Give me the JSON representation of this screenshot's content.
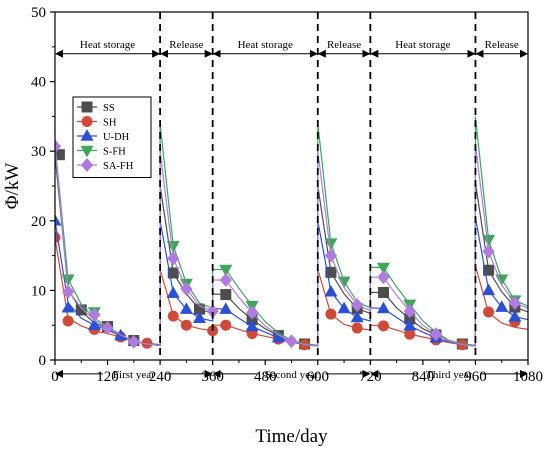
{
  "chart_data": {
    "type": "line",
    "title": "",
    "xlabel": "Time/day",
    "ylabel": "Φ/kW",
    "xlim": [
      0,
      1080
    ],
    "ylim": [
      0,
      50
    ],
    "xticks": [
      0,
      120,
      240,
      360,
      480,
      600,
      720,
      840,
      960,
      1080
    ],
    "yticks": [
      0,
      10,
      20,
      30,
      40,
      50
    ],
    "grid": false,
    "legend_position": "left",
    "phase_dividers": [
      240,
      360,
      600,
      720,
      960
    ],
    "phase_labels": [
      {
        "text": "Heat storage",
        "from": 0,
        "to": 240,
        "y": 44
      },
      {
        "text": "Release",
        "from": 240,
        "to": 360,
        "y": 44
      },
      {
        "text": "Heat storage",
        "from": 360,
        "to": 600,
        "y": 44
      },
      {
        "text": "Release",
        "from": 600,
        "to": 720,
        "y": 44
      },
      {
        "text": "Heat storage",
        "from": 720,
        "to": 960,
        "y": 44
      },
      {
        "text": "Release",
        "from": 960,
        "to": 1080,
        "y": 44
      }
    ],
    "year_labels": [
      {
        "text": "First year",
        "from": 0,
        "to": 360,
        "y": -2
      },
      {
        "text": "Second year",
        "from": 360,
        "to": 720,
        "y": -2
      },
      {
        "text": "Third year",
        "from": 720,
        "to": 1080,
        "y": -2
      }
    ],
    "series": [
      {
        "name": "SS",
        "color": "#4d4d4d",
        "marker": "square",
        "points": [
          [
            0,
            29.5
          ],
          [
            30,
            10.2
          ],
          [
            60,
            7.0
          ],
          [
            90,
            5.3
          ],
          [
            120,
            4.6
          ],
          [
            150,
            3.6
          ],
          [
            180,
            2.7
          ],
          [
            210,
            2.4
          ],
          [
            240,
            2.2
          ],
          [
            240,
            25.0
          ],
          [
            270,
            12.5
          ],
          [
            300,
            9.5
          ],
          [
            330,
            7.3
          ],
          [
            360,
            6.7
          ],
          [
            360,
            9.5
          ],
          [
            390,
            9.4
          ],
          [
            420,
            7.4
          ],
          [
            450,
            5.8
          ],
          [
            480,
            4.5
          ],
          [
            510,
            3.5
          ],
          [
            540,
            2.8
          ],
          [
            570,
            2.3
          ],
          [
            600,
            2.1
          ],
          [
            600,
            25.0
          ],
          [
            630,
            12.6
          ],
          [
            660,
            9.5
          ],
          [
            690,
            7.4
          ],
          [
            720,
            6.7
          ],
          [
            720,
            9.7
          ],
          [
            750,
            9.7
          ],
          [
            780,
            7.5
          ],
          [
            810,
            5.9
          ],
          [
            840,
            4.5
          ],
          [
            870,
            3.6
          ],
          [
            900,
            2.8
          ],
          [
            930,
            2.3
          ],
          [
            960,
            2.1
          ],
          [
            960,
            25.5
          ],
          [
            990,
            12.9
          ],
          [
            1020,
            9.8
          ],
          [
            1050,
            7.6
          ],
          [
            1080,
            6.9
          ]
        ],
        "markers": [
          [
            10,
            29.5
          ],
          [
            60,
            7.2
          ],
          [
            120,
            4.8
          ],
          [
            180,
            2.8
          ],
          [
            270,
            12.5
          ],
          [
            330,
            7.3
          ],
          [
            390,
            9.4
          ],
          [
            450,
            5.8
          ],
          [
            510,
            3.5
          ],
          [
            570,
            2.3
          ],
          [
            630,
            12.6
          ],
          [
            690,
            7.4
          ],
          [
            750,
            9.7
          ],
          [
            810,
            5.9
          ],
          [
            870,
            3.6
          ],
          [
            930,
            2.3
          ],
          [
            990,
            12.9
          ],
          [
            1050,
            7.6
          ]
        ]
      },
      {
        "name": "SH",
        "color": "#d04a3a",
        "marker": "circle",
        "points": [
          [
            0,
            17.5
          ],
          [
            30,
            6.0
          ],
          [
            60,
            4.9
          ],
          [
            90,
            4.2
          ],
          [
            120,
            3.8
          ],
          [
            150,
            3.3
          ],
          [
            180,
            2.7
          ],
          [
            210,
            2.3
          ],
          [
            240,
            2.1
          ],
          [
            240,
            13.0
          ],
          [
            270,
            6.4
          ],
          [
            300,
            5.0
          ],
          [
            330,
            4.5
          ],
          [
            360,
            4.2
          ],
          [
            360,
            5.0
          ],
          [
            390,
            5.0
          ],
          [
            420,
            4.4
          ],
          [
            450,
            3.8
          ],
          [
            480,
            3.4
          ],
          [
            510,
            3.0
          ],
          [
            540,
            2.6
          ],
          [
            570,
            2.2
          ],
          [
            600,
            2.0
          ],
          [
            600,
            13.0
          ],
          [
            630,
            6.6
          ],
          [
            660,
            5.1
          ],
          [
            690,
            4.6
          ],
          [
            720,
            4.3
          ],
          [
            720,
            5.0
          ],
          [
            750,
            4.9
          ],
          [
            780,
            4.3
          ],
          [
            810,
            3.7
          ],
          [
            840,
            3.3
          ],
          [
            870,
            2.9
          ],
          [
            900,
            2.5
          ],
          [
            930,
            2.2
          ],
          [
            960,
            2.0
          ],
          [
            960,
            13.5
          ],
          [
            990,
            6.8
          ],
          [
            1020,
            5.3
          ],
          [
            1050,
            4.7
          ],
          [
            1080,
            4.4
          ]
        ],
        "markers": [
          [
            0,
            17.6
          ],
          [
            30,
            5.6
          ],
          [
            90,
            4.4
          ],
          [
            150,
            3.3
          ],
          [
            210,
            2.4
          ],
          [
            270,
            6.3
          ],
          [
            300,
            5.0
          ],
          [
            360,
            4.2
          ],
          [
            390,
            5.0
          ],
          [
            450,
            3.8
          ],
          [
            510,
            3.0
          ],
          [
            570,
            2.2
          ],
          [
            630,
            6.6
          ],
          [
            690,
            4.6
          ],
          [
            750,
            4.9
          ],
          [
            810,
            3.7
          ],
          [
            870,
            2.9
          ],
          [
            930,
            2.2
          ],
          [
            990,
            6.9
          ],
          [
            1050,
            5.5
          ]
        ]
      },
      {
        "name": "U-DH",
        "color": "#2a50d6",
        "marker": "triangle-up",
        "points": [
          [
            0,
            20.0
          ],
          [
            30,
            8.2
          ],
          [
            60,
            6.0
          ],
          [
            90,
            5.0
          ],
          [
            120,
            4.3
          ],
          [
            150,
            3.5
          ],
          [
            180,
            2.7
          ],
          [
            210,
            2.3
          ],
          [
            240,
            2.1
          ],
          [
            240,
            20.0
          ],
          [
            270,
            9.6
          ],
          [
            300,
            7.3
          ],
          [
            330,
            6.0
          ],
          [
            360,
            5.6
          ],
          [
            360,
            7.4
          ],
          [
            390,
            7.3
          ],
          [
            420,
            6.0
          ],
          [
            450,
            4.8
          ],
          [
            480,
            4.0
          ],
          [
            510,
            3.2
          ],
          [
            540,
            2.6
          ],
          [
            570,
            2.2
          ],
          [
            600,
            2.0
          ],
          [
            600,
            20.0
          ],
          [
            630,
            9.8
          ],
          [
            660,
            7.4
          ],
          [
            690,
            6.1
          ],
          [
            720,
            5.6
          ],
          [
            720,
            7.5
          ],
          [
            750,
            7.4
          ],
          [
            780,
            6.1
          ],
          [
            810,
            4.9
          ],
          [
            840,
            4.0
          ],
          [
            870,
            3.2
          ],
          [
            900,
            2.6
          ],
          [
            930,
            2.2
          ],
          [
            960,
            2.0
          ],
          [
            960,
            20.5
          ],
          [
            990,
            10.0
          ],
          [
            1020,
            7.6
          ],
          [
            1050,
            6.2
          ],
          [
            1080,
            5.8
          ]
        ],
        "markers": [
          [
            0,
            20.0
          ],
          [
            30,
            7.5
          ],
          [
            90,
            5.0
          ],
          [
            150,
            3.5
          ],
          [
            270,
            9.6
          ],
          [
            300,
            7.3
          ],
          [
            330,
            6.0
          ],
          [
            390,
            7.3
          ],
          [
            450,
            4.8
          ],
          [
            510,
            3.2
          ],
          [
            630,
            9.8
          ],
          [
            660,
            7.4
          ],
          [
            690,
            6.1
          ],
          [
            750,
            7.4
          ],
          [
            810,
            4.9
          ],
          [
            870,
            3.2
          ],
          [
            990,
            10.0
          ],
          [
            1020,
            7.6
          ],
          [
            1050,
            6.2
          ]
        ]
      },
      {
        "name": "S-FH",
        "color": "#3da65a",
        "marker": "triangle-down",
        "points": [
          [
            0,
            31.0
          ],
          [
            30,
            11.6
          ],
          [
            60,
            8.0
          ],
          [
            90,
            6.0
          ],
          [
            120,
            4.8
          ],
          [
            150,
            3.6
          ],
          [
            180,
            2.7
          ],
          [
            210,
            2.3
          ],
          [
            240,
            2.1
          ],
          [
            240,
            34.0
          ],
          [
            270,
            16.4
          ],
          [
            300,
            11.0
          ],
          [
            330,
            8.2
          ],
          [
            360,
            7.4
          ],
          [
            360,
            13.0
          ],
          [
            390,
            13.0
          ],
          [
            420,
            10.3
          ],
          [
            450,
            7.8
          ],
          [
            480,
            5.5
          ],
          [
            510,
            3.9
          ],
          [
            540,
            2.8
          ],
          [
            570,
            2.3
          ],
          [
            600,
            2.1
          ],
          [
            600,
            34.0
          ],
          [
            630,
            16.8
          ],
          [
            660,
            11.3
          ],
          [
            690,
            8.3
          ],
          [
            720,
            7.5
          ],
          [
            720,
            13.3
          ],
          [
            750,
            13.3
          ],
          [
            780,
            10.5
          ],
          [
            810,
            8.0
          ],
          [
            840,
            5.6
          ],
          [
            870,
            4.0
          ],
          [
            900,
            2.8
          ],
          [
            930,
            2.3
          ],
          [
            960,
            2.1
          ],
          [
            960,
            35.0
          ],
          [
            990,
            17.3
          ],
          [
            1020,
            11.6
          ],
          [
            1050,
            8.6
          ],
          [
            1080,
            7.7
          ]
        ],
        "markers": [
          [
            30,
            11.6
          ],
          [
            90,
            6.9
          ],
          [
            270,
            16.4
          ],
          [
            300,
            11.0
          ],
          [
            390,
            13.0
          ],
          [
            450,
            7.8
          ],
          [
            630,
            16.8
          ],
          [
            660,
            11.3
          ],
          [
            750,
            13.3
          ],
          [
            810,
            8.0
          ],
          [
            990,
            17.3
          ],
          [
            1020,
            11.6
          ],
          [
            1050,
            8.6
          ]
        ]
      },
      {
        "name": "SA-FH",
        "color": "#b07be0",
        "marker": "diamond",
        "points": [
          [
            0,
            30.7
          ],
          [
            30,
            10.0
          ],
          [
            60,
            7.5
          ],
          [
            90,
            5.7
          ],
          [
            120,
            4.6
          ],
          [
            150,
            3.6
          ],
          [
            180,
            2.7
          ],
          [
            210,
            2.3
          ],
          [
            240,
            2.1
          ],
          [
            240,
            30.0
          ],
          [
            270,
            14.6
          ],
          [
            300,
            10.2
          ],
          [
            330,
            7.8
          ],
          [
            360,
            7.0
          ],
          [
            360,
            11.5
          ],
          [
            390,
            11.5
          ],
          [
            420,
            9.0
          ],
          [
            450,
            6.8
          ],
          [
            480,
            4.9
          ],
          [
            510,
            3.6
          ],
          [
            540,
            2.7
          ],
          [
            570,
            2.2
          ],
          [
            600,
            2.0
          ],
          [
            600,
            30.0
          ],
          [
            630,
            15.0
          ],
          [
            660,
            10.4
          ],
          [
            690,
            7.9
          ],
          [
            720,
            7.1
          ],
          [
            720,
            11.9
          ],
          [
            750,
            11.9
          ],
          [
            780,
            9.3
          ],
          [
            810,
            7.0
          ],
          [
            840,
            5.0
          ],
          [
            870,
            3.7
          ],
          [
            900,
            2.7
          ],
          [
            930,
            2.2
          ],
          [
            960,
            2.0
          ],
          [
            960,
            31.0
          ],
          [
            990,
            15.6
          ],
          [
            1020,
            10.8
          ],
          [
            1050,
            8.2
          ],
          [
            1080,
            7.4
          ]
        ],
        "markers": [
          [
            0,
            30.7
          ],
          [
            30,
            9.8
          ],
          [
            90,
            6.5
          ],
          [
            120,
            4.6
          ],
          [
            180,
            2.6
          ],
          [
            270,
            14.6
          ],
          [
            300,
            10.2
          ],
          [
            360,
            7.0
          ],
          [
            390,
            11.5
          ],
          [
            450,
            6.8
          ],
          [
            540,
            2.7
          ],
          [
            630,
            15.0
          ],
          [
            690,
            7.9
          ],
          [
            750,
            11.9
          ],
          [
            810,
            7.0
          ],
          [
            870,
            3.7
          ],
          [
            990,
            15.6
          ],
          [
            1050,
            8.2
          ]
        ]
      }
    ]
  }
}
